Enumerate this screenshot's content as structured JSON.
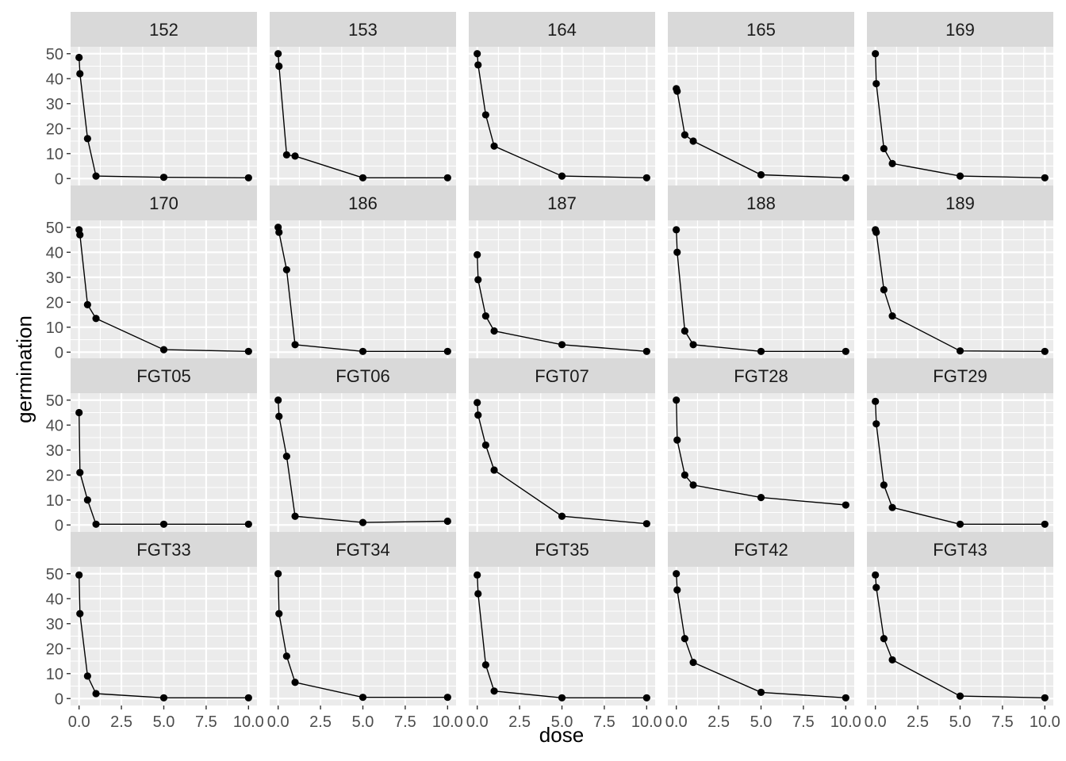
{
  "chart_data": {
    "type": "line",
    "xlabel": "dose",
    "ylabel": "germination",
    "xlim": [
      0,
      10
    ],
    "ylim": [
      0,
      50
    ],
    "x_ticks": [
      0,
      2.5,
      5,
      7.5,
      10
    ],
    "x_tick_labels": [
      "0.0",
      "2.5",
      "5.0",
      "7.5",
      "10.0"
    ],
    "y_ticks": [
      0,
      10,
      20,
      30,
      40,
      50
    ],
    "y_tick_labels": [
      "0",
      "10",
      "20",
      "30",
      "40",
      "50"
    ],
    "grid": true,
    "markers": true,
    "colors": {
      "panel_bg": "#EBEBEB",
      "strip_bg": "#D9D9D9",
      "grid": "#FFFFFF",
      "line": "#000000",
      "tick_text": "#4D4D4D",
      "strip_text": "#1A1A1A"
    },
    "x": [
      0,
      0.05,
      0.5,
      1,
      5,
      10
    ],
    "panels": [
      {
        "name": "152",
        "values": [
          48.5,
          42,
          16,
          1,
          0.5,
          0.3
        ]
      },
      {
        "name": "153",
        "values": [
          50,
          45,
          9.5,
          9,
          0.3,
          0.3
        ]
      },
      {
        "name": "164",
        "values": [
          50,
          45.5,
          25.5,
          13,
          1,
          0.3
        ]
      },
      {
        "name": "165",
        "values": [
          36,
          35,
          17.5,
          15,
          1.5,
          0.3
        ]
      },
      {
        "name": "169",
        "values": [
          50,
          38,
          12,
          6,
          1,
          0.3
        ]
      },
      {
        "name": "170",
        "values": [
          49,
          47,
          19,
          13.5,
          1,
          0.3
        ]
      },
      {
        "name": "186",
        "values": [
          50,
          48,
          33,
          3,
          0.3,
          0.3
        ]
      },
      {
        "name": "187",
        "values": [
          39,
          29,
          14.5,
          8.5,
          3,
          0.3
        ]
      },
      {
        "name": "188",
        "values": [
          49,
          40,
          8.5,
          3,
          0.3,
          0.3
        ]
      },
      {
        "name": "189",
        "values": [
          49,
          48,
          25,
          14.5,
          0.5,
          0.3
        ]
      },
      {
        "name": "FGT05",
        "values": [
          45,
          21,
          10,
          0.3,
          0.3,
          0.3
        ]
      },
      {
        "name": "FGT06",
        "values": [
          50,
          43.5,
          27.5,
          3.5,
          1,
          1.5
        ]
      },
      {
        "name": "FGT07",
        "values": [
          49,
          44,
          32,
          22,
          3.5,
          0.5
        ]
      },
      {
        "name": "FGT28",
        "values": [
          50,
          34,
          20,
          16,
          11,
          8
        ]
      },
      {
        "name": "FGT29",
        "values": [
          49.5,
          40.5,
          16,
          7,
          0.3,
          0.3
        ]
      },
      {
        "name": "FGT33",
        "values": [
          49.5,
          34,
          9,
          2,
          0.3,
          0.3
        ]
      },
      {
        "name": "FGT34",
        "values": [
          50,
          34,
          17,
          6.5,
          0.5,
          0.5
        ]
      },
      {
        "name": "FGT35",
        "values": [
          49.5,
          42,
          13.5,
          3,
          0.3,
          0.3
        ]
      },
      {
        "name": "FGT42",
        "values": [
          50,
          43.5,
          24,
          14.5,
          2.5,
          0.3
        ]
      },
      {
        "name": "FGT43",
        "values": [
          49.5,
          44.5,
          24,
          15.5,
          1,
          0.3
        ]
      }
    ]
  }
}
